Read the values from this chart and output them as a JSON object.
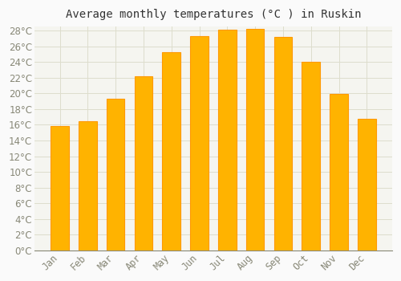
{
  "title": "Average monthly temperatures (°C ) in Ruskin",
  "months": [
    "Jan",
    "Feb",
    "Mar",
    "Apr",
    "May",
    "Jun",
    "Jul",
    "Aug",
    "Sep",
    "Oct",
    "Nov",
    "Dec"
  ],
  "temperatures": [
    15.8,
    16.5,
    19.3,
    22.2,
    25.3,
    27.3,
    28.1,
    28.2,
    27.2,
    24.0,
    19.9,
    16.8
  ],
  "bar_color_top": "#FFA500",
  "bar_color_mid": "#FFD000",
  "background_color": "#FAFAFA",
  "plot_bg_color": "#F5F5F0",
  "grid_color": "#DDDDCC",
  "tick_label_color": "#888877",
  "title_color": "#333333",
  "ylim_max": 28,
  "ytick_step": 2,
  "title_fontsize": 10,
  "tick_fontsize": 8.5
}
